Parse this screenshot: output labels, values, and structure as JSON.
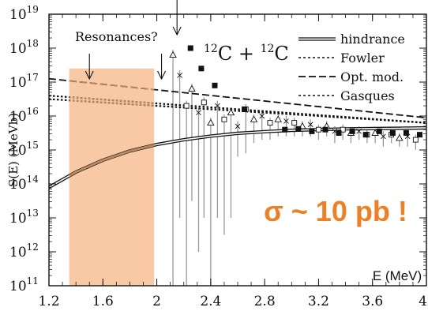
{
  "colors": {
    "band": "#f9c9a6",
    "overlay": "#b88a5f",
    "accent": "#f07f22",
    "ink": "#111111",
    "errbar": "#999999"
  },
  "chart_data": {
    "type": "line",
    "title": "¹²C + ¹²C",
    "title_text": "C + C",
    "title_mass": "12",
    "xlabel": "E (MeV)",
    "ylabel": "S(E)  (MeVb)",
    "xlim": [
      1.2,
      4.0
    ],
    "ylim_log10": [
      11,
      19
    ],
    "x_ticks": [
      "1.2",
      "1.6",
      "2",
      "2.4",
      "2.8",
      "3.2",
      "3.6",
      "4"
    ],
    "x_tick_values": [
      1.2,
      1.6,
      2.0,
      2.4,
      2.8,
      3.2,
      3.6,
      4.0
    ],
    "y_tick_exponents": [
      11,
      12,
      13,
      14,
      15,
      16,
      17,
      18,
      19
    ],
    "y_tick_base": "10",
    "shaded_region": {
      "x_range": [
        1.35,
        1.98
      ],
      "y_top_log10": 17.4,
      "label": "Resonances?"
    },
    "annotation": "σ ~ 10 pb !",
    "resonance_arrows_x": [
      1.5,
      2.0,
      2.15
    ],
    "series": [
      {
        "name": "hindrance",
        "style": "double",
        "x": [
          1.2,
          1.4,
          1.6,
          1.8,
          2.0,
          2.2,
          2.4,
          2.6,
          2.8,
          3.0,
          3.2,
          3.4,
          3.6,
          3.8,
          4.0
        ],
        "log10": [
          13.9,
          14.35,
          14.7,
          14.97,
          15.16,
          15.3,
          15.41,
          15.49,
          15.54,
          15.58,
          15.6,
          15.62,
          15.63,
          15.64,
          15.65
        ]
      },
      {
        "name": "Fowler",
        "style": "dotted",
        "x": [
          1.2,
          4.0
        ],
        "log10": [
          16.5,
          15.8
        ]
      },
      {
        "name": "Opt. mod.",
        "style": "dashed",
        "x": [
          1.2,
          4.0
        ],
        "log10": [
          17.1,
          15.95
        ]
      },
      {
        "name": "Gasques",
        "style": "dotted",
        "x": [
          1.2,
          4.0
        ],
        "log10": [
          16.6,
          15.8
        ]
      }
    ],
    "data_points_open": {
      "x": [
        2.12,
        2.17,
        2.22,
        2.26,
        2.31,
        2.35,
        2.4,
        2.45,
        2.5,
        2.55,
        2.6,
        2.66,
        2.72,
        2.78,
        2.84,
        2.9,
        2.96,
        3.02,
        3.08,
        3.14,
        3.2,
        3.26,
        3.32,
        3.38,
        3.44,
        3.5,
        3.56,
        3.62,
        3.68,
        3.74,
        3.8,
        3.86,
        3.92
      ],
      "log10": [
        17.8,
        17.2,
        16.3,
        16.8,
        16.1,
        16.4,
        15.8,
        16.3,
        15.9,
        16.1,
        15.7,
        16.2,
        15.9,
        16.0,
        15.8,
        15.9,
        15.85,
        15.8,
        15.7,
        15.75,
        15.6,
        15.7,
        15.55,
        15.6,
        15.5,
        15.55,
        15.45,
        15.5,
        15.4,
        15.45,
        15.35,
        15.4,
        15.3
      ],
      "err_low": [
        11.0,
        13.0,
        11.0,
        13.5,
        12.0,
        13.0,
        11.0,
        13.0,
        12.5,
        13.0,
        14.8,
        14.9,
        15.2,
        15.3,
        15.3,
        15.4,
        15.4,
        15.4,
        15.4,
        15.4,
        15.3,
        15.4,
        15.2,
        15.3,
        15.2,
        15.3,
        15.2,
        15.2,
        15.1,
        15.2,
        15.1,
        15.1,
        15.0
      ]
    },
    "data_points_filled": {
      "x": [
        2.25,
        2.33,
        2.43,
        2.65,
        2.95,
        3.05,
        3.15,
        3.25,
        3.35,
        3.45,
        3.55,
        3.65,
        3.75,
        3.85,
        3.95
      ],
      "log10": [
        18.0,
        17.4,
        16.9,
        16.2,
        15.6,
        15.62,
        15.55,
        15.6,
        15.5,
        15.55,
        15.45,
        15.55,
        15.5,
        15.5,
        15.45
      ]
    }
  }
}
